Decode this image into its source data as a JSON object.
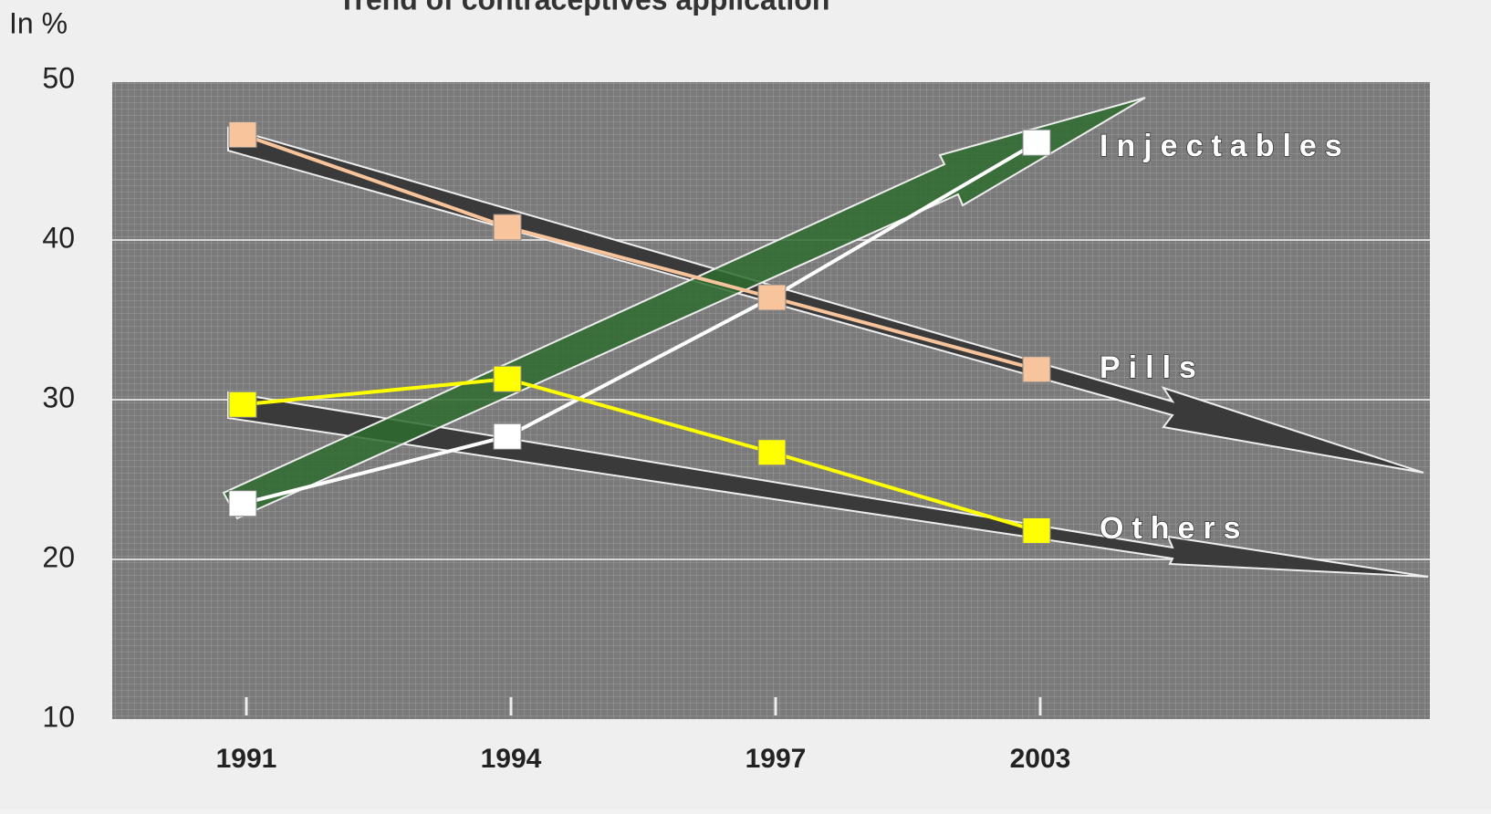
{
  "chart_data": {
    "type": "line",
    "title": "Trend of contraceptives application",
    "y_label": "In %",
    "categories": [
      "1991",
      "1994",
      "1997",
      "2003"
    ],
    "series": [
      {
        "name": "Injectables",
        "color": "#ffffff",
        "values": [
          23.5,
          27.7,
          36.4,
          46.1
        ]
      },
      {
        "name": "Pills",
        "color": "#f8c49c",
        "values": [
          46.6,
          40.8,
          36.4,
          31.9
        ]
      },
      {
        "name": "Others",
        "color": "#ffff00",
        "values": [
          29.7,
          31.3,
          26.7,
          21.8
        ]
      }
    ],
    "ylim": [
      10,
      50
    ],
    "yticks": [
      10,
      20,
      30,
      40,
      50
    ],
    "grid": true
  }
}
